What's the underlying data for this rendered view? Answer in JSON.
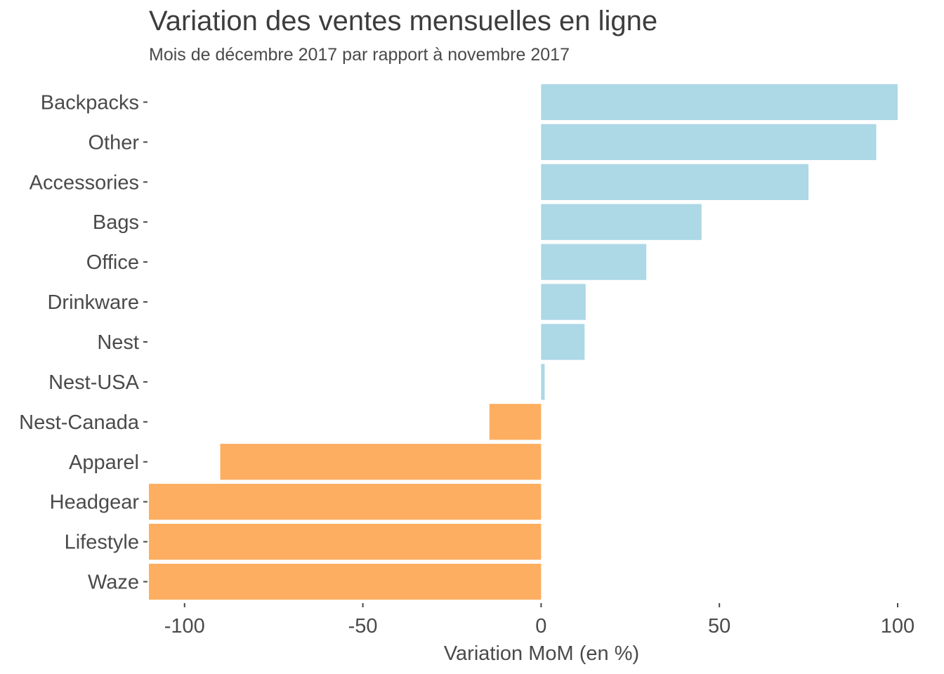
{
  "chart_data": {
    "type": "bar",
    "orientation": "horizontal",
    "title": "Variation des ventes mensuelles en ligne",
    "subtitle": "Mois de décembre 2017 par rapport à novembre 2017",
    "xlabel": "Variation MoM (en %)",
    "ylabel": "",
    "xlim": [
      -110,
      100
    ],
    "xticks": [
      -100,
      -50,
      0,
      50,
      100
    ],
    "grid": false,
    "legend": "none",
    "categories": [
      "Backpacks",
      "Other",
      "Accessories",
      "Bags",
      "Office",
      "Drinkware",
      "Nest",
      "Nest-USA",
      "Nest-Canada",
      "Apparel",
      "Headgear",
      "Lifestyle",
      "Waze"
    ],
    "values": [
      100,
      94,
      75,
      45,
      29.5,
      12.5,
      12.2,
      1,
      -14.5,
      -90,
      -110,
      -110,
      -110
    ],
    "colors": {
      "positive": "#add8e6",
      "negative": "#fdae61"
    }
  }
}
